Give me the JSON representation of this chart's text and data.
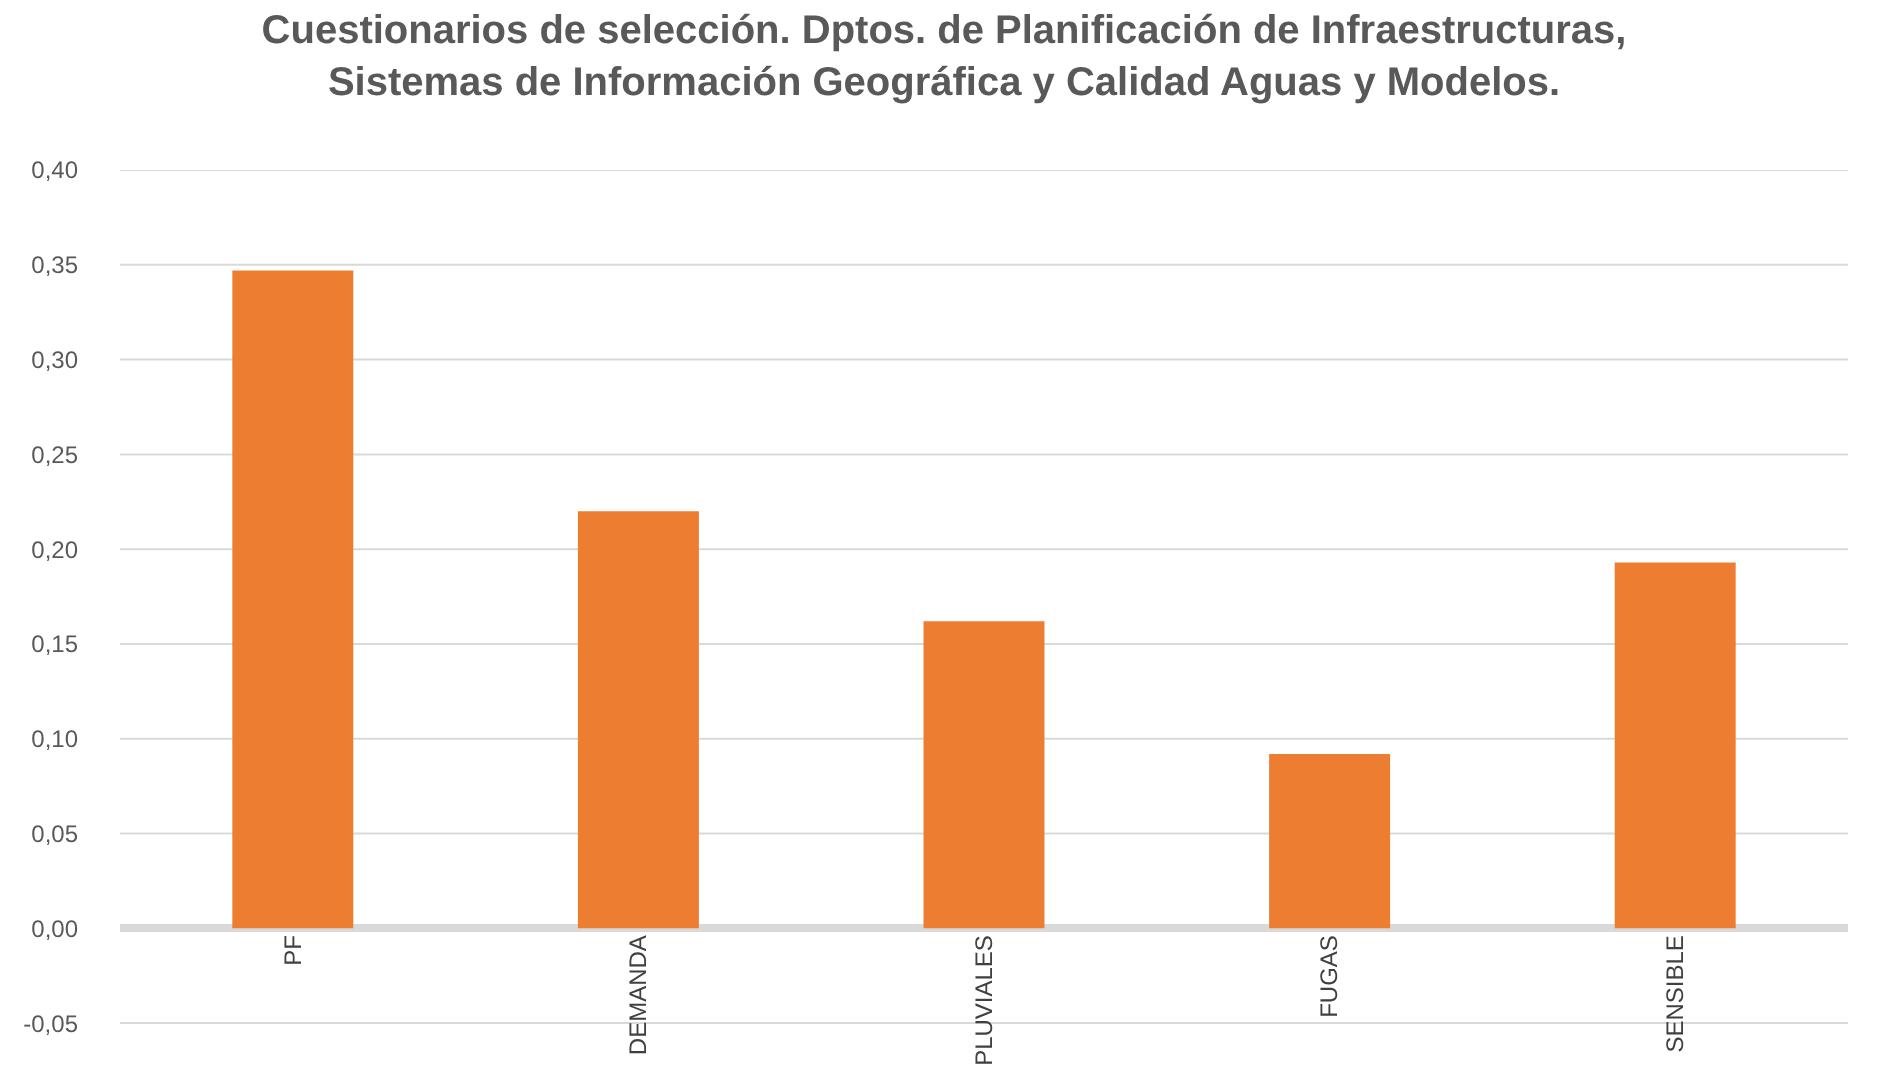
{
  "chart_data": {
    "type": "bar",
    "title": "Cuestionarios de selección. Dptos. de Planificación de Infraestructuras,\nSistemas de Información Geográfica y Calidad Aguas y Modelos.",
    "categories": [
      "PF",
      "DEMANDA",
      "PLUVIALES",
      "FUGAS",
      "SENSIBLE"
    ],
    "values": [
      0.347,
      0.22,
      0.162,
      0.092,
      0.193
    ],
    "color": "#ed7d31",
    "ylim": [
      -0.08,
      0.4
    ],
    "yticks": [
      {
        "value": -0.05,
        "label": "-0,05"
      },
      {
        "value": 0,
        "label": "0,00"
      },
      {
        "value": 0.05,
        "label": "0,05"
      },
      {
        "value": 0.1,
        "label": "0,10"
      },
      {
        "value": 0.15,
        "label": "0,15"
      },
      {
        "value": 0.2,
        "label": "0,20"
      },
      {
        "value": 0.25,
        "label": "0,25"
      },
      {
        "value": 0.3,
        "label": "0,30"
      },
      {
        "value": 0.35,
        "label": "0,35"
      },
      {
        "value": 0.4,
        "label": "0,40"
      }
    ],
    "grid": "y"
  }
}
